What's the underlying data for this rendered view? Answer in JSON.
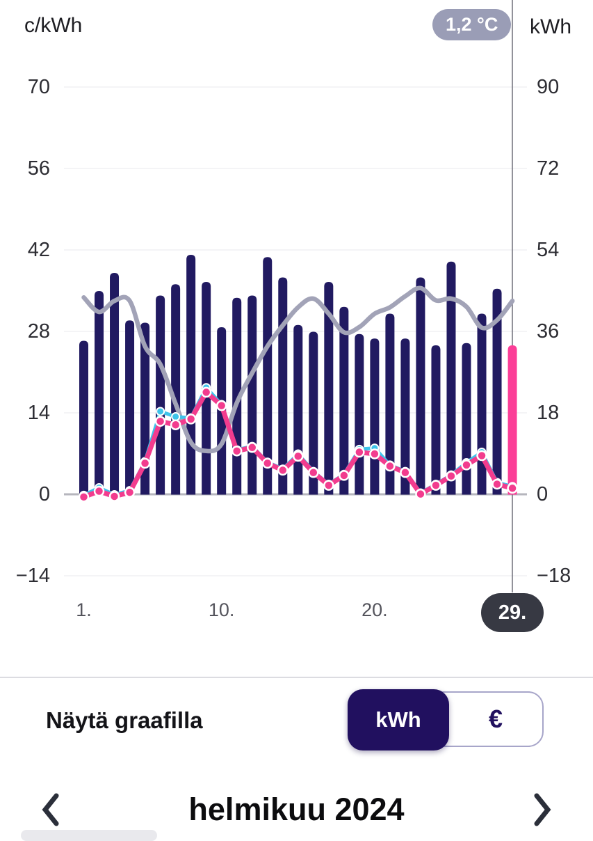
{
  "header": {
    "unit_left": "c/kWh",
    "unit_right": "kWh",
    "tooltip_badge": "1,2 °C"
  },
  "axes": {
    "left_ticks": [
      "70",
      "56",
      "42",
      "28",
      "14",
      "0",
      "−14"
    ],
    "right_ticks": [
      "90",
      "72",
      "54",
      "36",
      "18",
      "0",
      "−18"
    ],
    "x_ticks": [
      {
        "label": "1.",
        "day": 1
      },
      {
        "label": "10.",
        "day": 10
      },
      {
        "label": "20.",
        "day": 20
      }
    ],
    "selected_day_pill": "29."
  },
  "chart_data": {
    "type": "bar",
    "categories": [
      1,
      2,
      3,
      4,
      5,
      6,
      7,
      8,
      9,
      10,
      11,
      12,
      13,
      14,
      15,
      16,
      17,
      18,
      19,
      20,
      21,
      22,
      23,
      24,
      25,
      26,
      27,
      28,
      29
    ],
    "selected_day": 29,
    "grid": "horizontal",
    "legend": "none",
    "y_left": {
      "label": "c/kWh",
      "min": -14,
      "max": 70,
      "tick_step": 14
    },
    "y_right": {
      "label": "kWh",
      "min": -18,
      "max": 90,
      "tick_step": 18
    },
    "x_axis": {
      "ticks_shown": [
        "1.",
        "10.",
        "20.",
        "29."
      ]
    },
    "series": [
      {
        "name": "daily-consumption",
        "type": "bar",
        "axis": "right",
        "unit": "kWh",
        "values": [
          34,
          45,
          49,
          38.5,
          38,
          44,
          46.5,
          53,
          47,
          37,
          43.5,
          44,
          52.5,
          48,
          37.5,
          36,
          47,
          41.5,
          35.5,
          34.5,
          40,
          34.5,
          48,
          33,
          51.5,
          33.5,
          40,
          45.5,
          33
        ]
      },
      {
        "name": "spot-price-cyan",
        "type": "line",
        "axis": "left",
        "unit": "c/kWh",
        "values": [
          -0.1,
          1.2,
          0.0,
          0.7,
          5.7,
          14.3,
          13.4,
          13.2,
          18.4,
          15.5,
          7.7,
          8.3,
          5.6,
          4.4,
          7.0,
          4.0,
          1.8,
          3.5,
          7.8,
          8.0,
          5.1,
          4.0,
          0.3,
          1.8,
          3.4,
          5.5,
          7.3,
          2.1,
          1.4
        ]
      },
      {
        "name": "price-pink",
        "type": "line",
        "axis": "left",
        "unit": "c/kWh",
        "values": [
          -0.4,
          0.6,
          -0.3,
          0.4,
          5.4,
          12.6,
          12.0,
          13.0,
          17.6,
          15.3,
          7.5,
          8.1,
          5.4,
          4.2,
          6.6,
          3.8,
          1.6,
          3.3,
          7.3,
          7.0,
          4.9,
          3.8,
          0.1,
          1.6,
          3.2,
          5.1,
          6.7,
          1.8,
          1.1
        ]
      },
      {
        "name": "temperature",
        "type": "line",
        "axis": "hidden",
        "unit": "°C",
        "value_at_selected_day": "1,2 °C",
        "values_left_axis_scale": [
          33.9,
          31.4,
          33.3,
          33.3,
          25.5,
          22.4,
          15.6,
          9.0,
          7.5,
          8.7,
          15.8,
          20.9,
          25.5,
          29.1,
          32.2,
          33.7,
          31.1,
          27.9,
          28.8,
          31.1,
          32.2,
          34.1,
          35.5,
          33.4,
          33.7,
          32.3,
          28.7,
          30.0,
          33.3
        ]
      }
    ]
  },
  "colors": {
    "bar": "#211a61",
    "bar_selected": "#fb3e97",
    "line_pink": "#f23c8e",
    "line_cyan": "#3ec3ea",
    "line_temp": "#a2a3b7",
    "gridline": "#ededf1",
    "baseline": "#b6b6bd",
    "cursor": "#6e6e78",
    "badge_bg": "#9a9db6",
    "pill_bg": "#373943",
    "toggle_navy": "#21105f"
  },
  "controls": {
    "label": "Näytä graafilla",
    "options": [
      "kWh",
      "€"
    ],
    "selected": "kWh"
  },
  "month_nav": {
    "title": "helmikuu 2024"
  }
}
